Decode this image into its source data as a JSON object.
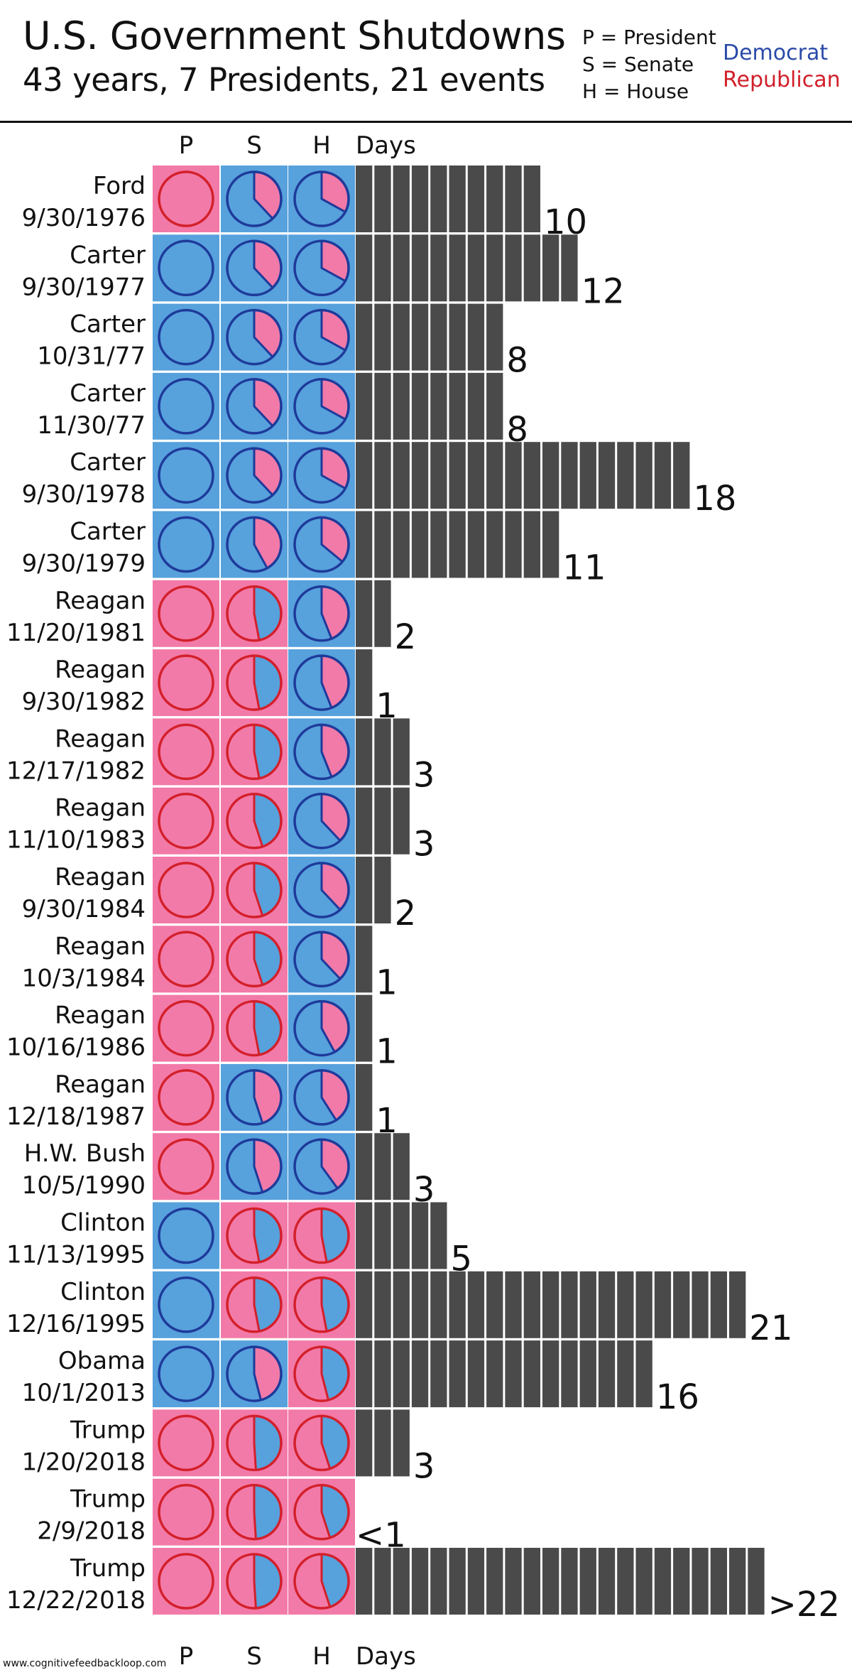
{
  "header": {
    "title": "U.S. Government Shutdowns",
    "subtitle": "43 years, 7 Presidents, 21 events",
    "key": [
      "P = President",
      "S = Senate",
      "H = House"
    ],
    "party_key": [
      {
        "label": "Democrat",
        "color": "#2b4aa8"
      },
      {
        "label": "Republican",
        "color": "#d11f2a"
      }
    ]
  },
  "colors": {
    "dem_fill": "#57a1dc",
    "dem_stroke": "#1e3a9a",
    "rep_fill": "#f27aa8",
    "rep_stroke": "#d3202b",
    "bar": "#4a4a4a"
  },
  "footer": {
    "url": "www.cognitivefeedbackloop.com"
  },
  "chart_data": {
    "type": "table",
    "column_headers": [
      "P",
      "S",
      "H",
      "Days"
    ],
    "rows": [
      {
        "president": "Ford",
        "date": "9/30/1976",
        "p_party": "R",
        "senate_dem_share": 0.62,
        "house_dem_share": 0.67,
        "days": 10,
        "days_label": "10"
      },
      {
        "president": "Carter",
        "date": "9/30/1977",
        "p_party": "D",
        "senate_dem_share": 0.62,
        "house_dem_share": 0.67,
        "days": 12,
        "days_label": "12"
      },
      {
        "president": "Carter",
        "date": "10/31/77",
        "p_party": "D",
        "senate_dem_share": 0.62,
        "house_dem_share": 0.67,
        "days": 8,
        "days_label": "8"
      },
      {
        "president": "Carter",
        "date": "11/30/77",
        "p_party": "D",
        "senate_dem_share": 0.62,
        "house_dem_share": 0.67,
        "days": 8,
        "days_label": "8"
      },
      {
        "president": "Carter",
        "date": "9/30/1978",
        "p_party": "D",
        "senate_dem_share": 0.62,
        "house_dem_share": 0.67,
        "days": 18,
        "days_label": "18"
      },
      {
        "president": "Carter",
        "date": "9/30/1979",
        "p_party": "D",
        "senate_dem_share": 0.58,
        "house_dem_share": 0.64,
        "days": 11,
        "days_label": "11"
      },
      {
        "president": "Reagan",
        "date": "11/20/1981",
        "p_party": "R",
        "senate_dem_share": 0.47,
        "house_dem_share": 0.56,
        "days": 2,
        "days_label": "2"
      },
      {
        "president": "Reagan",
        "date": "9/30/1982",
        "p_party": "R",
        "senate_dem_share": 0.47,
        "house_dem_share": 0.56,
        "days": 1,
        "days_label": "1"
      },
      {
        "president": "Reagan",
        "date": "12/17/1982",
        "p_party": "R",
        "senate_dem_share": 0.47,
        "house_dem_share": 0.56,
        "days": 3,
        "days_label": "3"
      },
      {
        "president": "Reagan",
        "date": "11/10/1983",
        "p_party": "R",
        "senate_dem_share": 0.45,
        "house_dem_share": 0.62,
        "days": 3,
        "days_label": "3"
      },
      {
        "president": "Reagan",
        "date": "9/30/1984",
        "p_party": "R",
        "senate_dem_share": 0.45,
        "house_dem_share": 0.62,
        "days": 2,
        "days_label": "2"
      },
      {
        "president": "Reagan",
        "date": "10/3/1984",
        "p_party": "R",
        "senate_dem_share": 0.45,
        "house_dem_share": 0.62,
        "days": 1,
        "days_label": "1"
      },
      {
        "president": "Reagan",
        "date": "10/16/1986",
        "p_party": "R",
        "senate_dem_share": 0.47,
        "house_dem_share": 0.58,
        "days": 1,
        "days_label": "1"
      },
      {
        "president": "Reagan",
        "date": "12/18/1987",
        "p_party": "R",
        "senate_dem_share": 0.55,
        "house_dem_share": 0.59,
        "days": 1,
        "days_label": "1"
      },
      {
        "president": "H.W. Bush",
        "date": "10/5/1990",
        "p_party": "R",
        "senate_dem_share": 0.55,
        "house_dem_share": 0.6,
        "days": 3,
        "days_label": "3"
      },
      {
        "president": "Clinton",
        "date": "11/13/1995",
        "p_party": "D",
        "senate_dem_share": 0.47,
        "house_dem_share": 0.47,
        "days": 5,
        "days_label": "5"
      },
      {
        "president": "Clinton",
        "date": "12/16/1995",
        "p_party": "D",
        "senate_dem_share": 0.47,
        "house_dem_share": 0.47,
        "days": 21,
        "days_label": "21"
      },
      {
        "president": "Obama",
        "date": "10/1/2013",
        "p_party": "D",
        "senate_dem_share": 0.54,
        "house_dem_share": 0.46,
        "days": 16,
        "days_label": "16"
      },
      {
        "president": "Trump",
        "date": "1/20/2018",
        "p_party": "R",
        "senate_dem_share": 0.49,
        "house_dem_share": 0.45,
        "days": 3,
        "days_label": "3"
      },
      {
        "president": "Trump",
        "date": "2/9/2018",
        "p_party": "R",
        "senate_dem_share": 0.49,
        "house_dem_share": 0.45,
        "days": 0,
        "days_label": "<1"
      },
      {
        "president": "Trump",
        "date": "12/22/2018",
        "p_party": "R",
        "senate_dem_share": 0.49,
        "house_dem_share": 0.45,
        "days": 22,
        "days_label": ">22"
      }
    ]
  }
}
